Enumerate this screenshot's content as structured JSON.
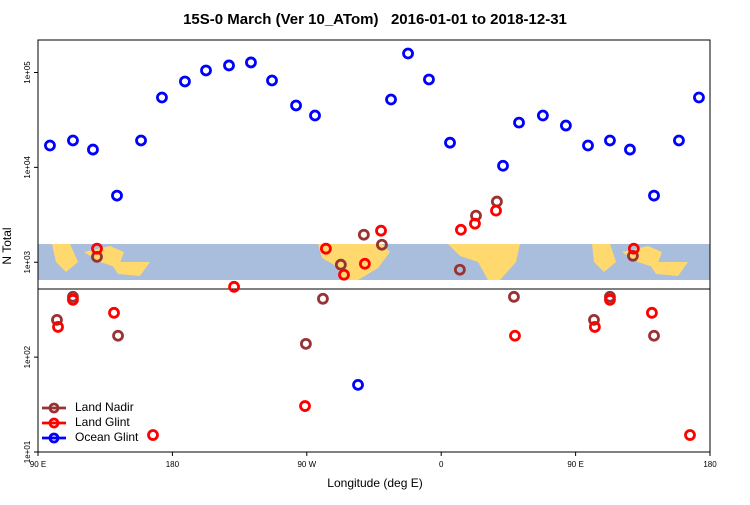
{
  "chart_data": {
    "type": "scatter",
    "title": "15S-0 March (Ver 10_ATom)   2016-01-01 to 2018-12-31",
    "xlabel": "Longitude (deg E)",
    "ylabel": "N Total",
    "xlim": [
      90,
      540
    ],
    "xticks": [
      {
        "value": 90,
        "label": "90 E"
      },
      {
        "value": 180,
        "label": "180"
      },
      {
        "value": 270,
        "label": "90 W"
      },
      {
        "value": 360,
        "label": "0"
      },
      {
        "value": 450,
        "label": "90 E"
      },
      {
        "value": 540,
        "label": "180"
      }
    ],
    "ylim": [
      10,
      220000
    ],
    "ylog": true,
    "yticks": [
      {
        "value": 10,
        "label": "1e+01"
      },
      {
        "value": 100,
        "label": "1e+02"
      },
      {
        "value": 1000,
        "label": "1e+03"
      },
      {
        "value": 10000,
        "label": "1e+04"
      },
      {
        "value": 100000,
        "label": "1e+05"
      }
    ],
    "legend": "lower left",
    "series": [
      {
        "name": "Land Nadir",
        "color": "#993333",
        "x": [
          129.5,
          102.7,
          113.4,
          143.6,
          280.8,
          269.4,
          292.8,
          308.2,
          320.3,
          372.5,
          383.3,
          397.3,
          408.7,
          462.3,
          473,
          502.5,
          488.4
        ],
        "values": [
          1140,
          247,
          432,
          168,
          412,
          138,
          942,
          1950,
          1530,
          834,
          3100,
          4360,
          432,
          247,
          432,
          168,
          1170
        ]
      },
      {
        "name": "Land Glint",
        "color": "#ff0000",
        "x": [
          129.5,
          103.4,
          113.4,
          140.9,
          167,
          221.3,
          268.8,
          282.8,
          294.9,
          308.9,
          319.7,
          373.2,
          382.6,
          396.7,
          409.4,
          462.9,
          473,
          501.1,
          526.6,
          489
        ],
        "values": [
          1390,
          208,
          402,
          293,
          15.1,
          551,
          30.5,
          1390,
          738,
          964,
          2150,
          2200,
          2550,
          3500,
          168,
          208,
          402,
          293,
          15.1,
          1390
        ]
      },
      {
        "name": "Ocean Glint",
        "color": "#0000ff",
        "x": [
          98,
          113.4,
          126.8,
          142.9,
          159,
          173,
          188.4,
          202.5,
          217.9,
          232.6,
          246.7,
          262.8,
          275.5,
          304.3,
          326.4,
          337.8,
          351.8,
          365.9,
          401.4,
          412.1,
          428.1,
          443.5,
          458.3,
          473,
          486.4,
          502.5,
          519.2,
          532.6
        ],
        "values": [
          17000,
          19200,
          15400,
          5040,
          19200,
          54500,
          80400,
          105000,
          118600,
          127600,
          82300,
          44900,
          35200,
          51,
          51900,
          158500,
          84400,
          18200,
          10400,
          29600,
          35200,
          27600,
          17000,
          19200,
          15400,
          5040,
          19200,
          54500
        ]
      }
    ]
  }
}
